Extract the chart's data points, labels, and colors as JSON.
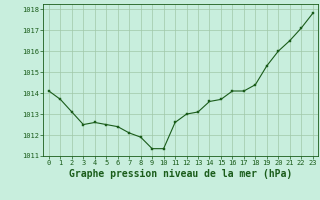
{
  "x": [
    0,
    1,
    2,
    3,
    4,
    5,
    6,
    7,
    8,
    9,
    10,
    11,
    12,
    13,
    14,
    15,
    16,
    17,
    18,
    19,
    20,
    21,
    22,
    23
  ],
  "y": [
    1014.1,
    1013.7,
    1013.1,
    1012.5,
    1012.6,
    1012.5,
    1012.4,
    1012.1,
    1011.9,
    1011.35,
    1011.35,
    1012.6,
    1013.0,
    1013.1,
    1013.6,
    1013.7,
    1014.1,
    1014.1,
    1014.4,
    1015.3,
    1016.0,
    1016.5,
    1017.1,
    1017.8
  ],
  "line_color": "#1a5c1a",
  "marker_color": "#1a5c1a",
  "bg_color": "#c8eedd",
  "grid_color": "#a0c8a8",
  "xlabel": "Graphe pression niveau de la mer (hPa)",
  "ylim": [
    1011.0,
    1018.25
  ],
  "xlim": [
    -0.5,
    23.5
  ],
  "yticks": [
    1011,
    1012,
    1013,
    1014,
    1015,
    1016,
    1017,
    1018
  ],
  "xticks": [
    0,
    1,
    2,
    3,
    4,
    5,
    6,
    7,
    8,
    9,
    10,
    11,
    12,
    13,
    14,
    15,
    16,
    17,
    18,
    19,
    20,
    21,
    22,
    23
  ],
  "tick_fontsize": 5.0,
  "xlabel_fontsize": 7.0,
  "label_color": "#1a5c1a"
}
